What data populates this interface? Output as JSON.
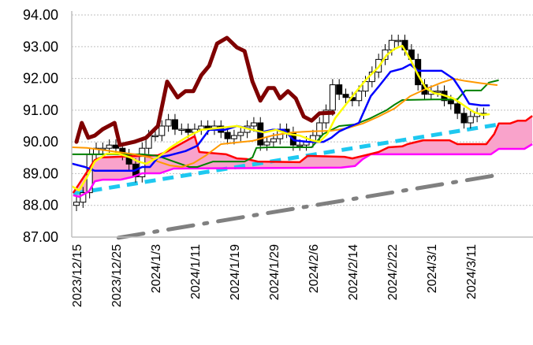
{
  "chart_data": {
    "type": "candlestick",
    "title": "",
    "xlabel": "",
    "ylabel": "",
    "ylim": [
      87,
      94
    ],
    "xlim_index": [
      -0.7,
      69.5
    ],
    "grid": true,
    "y_ticks": [
      "94.00",
      "93.00",
      "92.00",
      "91.00",
      "90.00",
      "89.00",
      "88.00",
      "87.00"
    ],
    "y_tick_values": [
      94,
      93,
      92,
      91,
      90,
      89,
      88,
      87
    ],
    "x_ticks": [
      {
        "label": "2023/12/15",
        "index": 0
      },
      {
        "label": "2023/12/25",
        "index": 6
      },
      {
        "label": "2024/1/3",
        "index": 12
      },
      {
        "label": "2024/1/11",
        "index": 18
      },
      {
        "label": "2024/1/19",
        "index": 24
      },
      {
        "label": "2024/1/29",
        "index": 30
      },
      {
        "label": "2024/2/6",
        "index": 36
      },
      {
        "label": "2024/2/14",
        "index": 42
      },
      {
        "label": "2024/2/22",
        "index": 48
      },
      {
        "label": "2024/3/1",
        "index": 54
      },
      {
        "label": "2024/3/11",
        "index": 60
      }
    ],
    "first_open": 88.0,
    "wick_pad": 0.18,
    "close": [
      88.1,
      88.4,
      89.6,
      89.8,
      89.8,
      89.9,
      89.8,
      89.6,
      89.3,
      88.9,
      89.8,
      90.2,
      90.2,
      90.5,
      90.7,
      90.4,
      90.4,
      90.3,
      90.4,
      90.5,
      90.4,
      90.5,
      90.3,
      90.1,
      90.2,
      90.3,
      90.5,
      90.6,
      89.9,
      90.0,
      90.1,
      90.4,
      90.3,
      89.9,
      89.9,
      90.0,
      90.2,
      90.6,
      91.0,
      91.8,
      91.5,
      91.4,
      91.3,
      91.6,
      91.9,
      92.2,
      92.6,
      92.9,
      93.2,
      93.2,
      92.9,
      92.6,
      91.8,
      91.5,
      91.6,
      91.6,
      91.3,
      91.2,
      90.9,
      90.6,
      90.8,
      90.9,
      90.9
    ],
    "cloud": {
      "fill": "#f9a3cb",
      "span_a": {
        "name": "span-a",
        "color": "#ff0000",
        "points": [
          [
            -0.5,
            88.39
          ],
          [
            2.8,
            89.43
          ],
          [
            3.7,
            89.51
          ],
          [
            12.4,
            89.58
          ],
          [
            13.9,
            89.71
          ],
          [
            18,
            90.18
          ],
          [
            18.7,
            89.68
          ],
          [
            22.8,
            89.61
          ],
          [
            24.4,
            89.48
          ],
          [
            25.9,
            89.46
          ],
          [
            27.6,
            89.38
          ],
          [
            34,
            89.36
          ],
          [
            35.2,
            89.56
          ],
          [
            40.8,
            89.53
          ],
          [
            42,
            89.48
          ],
          [
            44,
            89.58
          ],
          [
            46,
            89.68
          ],
          [
            47.5,
            89.83
          ],
          [
            49.6,
            89.86
          ],
          [
            50.4,
            89.93
          ],
          [
            52.8,
            90.05
          ],
          [
            56.8,
            90.05
          ],
          [
            58,
            89.93
          ],
          [
            62.4,
            89.93
          ],
          [
            63.6,
            90.25
          ],
          [
            64.3,
            90.58
          ],
          [
            66,
            90.58
          ],
          [
            67.2,
            90.67
          ],
          [
            68.4,
            90.67
          ],
          [
            69.4,
            90.82
          ]
        ]
      },
      "span_b": {
        "name": "span-b",
        "color": "#ff00ff",
        "points": [
          [
            -0.5,
            88.32
          ],
          [
            0.4,
            88.27
          ],
          [
            1.9,
            88.44
          ],
          [
            2.8,
            88.76
          ],
          [
            4,
            88.81
          ],
          [
            6.7,
            88.81
          ],
          [
            8.4,
            88.89
          ],
          [
            10,
            89.01
          ],
          [
            12.7,
            89.01
          ],
          [
            14.8,
            89.16
          ],
          [
            40.3,
            89.19
          ],
          [
            42.4,
            89.24
          ],
          [
            43.6,
            89.46
          ],
          [
            44.8,
            89.61
          ],
          [
            63.1,
            89.61
          ],
          [
            64.3,
            89.78
          ],
          [
            68.2,
            89.78
          ],
          [
            69.4,
            89.93
          ]
        ]
      }
    },
    "series": [
      {
        "name": "lagging-span",
        "color": "#7f0000",
        "width": 5,
        "points": [
          [
            0,
            90.0
          ],
          [
            0.8,
            90.6
          ],
          [
            1.8,
            90.13
          ],
          [
            2.8,
            90.2
          ],
          [
            4,
            90.4
          ],
          [
            5.8,
            90.6
          ],
          [
            6.6,
            89.9
          ],
          [
            8.8,
            90.0
          ],
          [
            10.6,
            90.13
          ],
          [
            12.4,
            90.5
          ],
          [
            13.8,
            91.9
          ],
          [
            15.4,
            91.4
          ],
          [
            16.6,
            91.6
          ],
          [
            17.8,
            91.6
          ],
          [
            19,
            92.1
          ],
          [
            20.2,
            92.4
          ],
          [
            21.4,
            93.1
          ],
          [
            22.9,
            93.28
          ],
          [
            24.4,
            92.98
          ],
          [
            25.6,
            92.86
          ],
          [
            26.8,
            91.9
          ],
          [
            28,
            91.3
          ],
          [
            29.2,
            91.7
          ],
          [
            30.1,
            91.7
          ],
          [
            31,
            91.37
          ],
          [
            32.2,
            91.6
          ],
          [
            33.4,
            91.37
          ],
          [
            34.6,
            90.8
          ],
          [
            35.8,
            90.67
          ],
          [
            37,
            90.9
          ],
          [
            39.1,
            90.92
          ]
        ]
      },
      {
        "name": "green-line",
        "color": "#008000",
        "width": 2,
        "points": [
          [
            -0.6,
            89.61
          ],
          [
            10,
            89.61
          ],
          [
            12.4,
            89.56
          ],
          [
            14.8,
            89.38
          ],
          [
            17.2,
            89.21
          ],
          [
            18.4,
            89.21
          ],
          [
            20.8,
            89.38
          ],
          [
            25.6,
            89.38
          ],
          [
            26.8,
            89.51
          ],
          [
            27.4,
            89.81
          ],
          [
            29.2,
            89.83
          ],
          [
            35.8,
            89.83
          ],
          [
            37.6,
            90.25
          ],
          [
            40,
            90.5
          ],
          [
            42.4,
            90.55
          ],
          [
            44.8,
            90.75
          ],
          [
            47.2,
            91.0
          ],
          [
            48.4,
            91.17
          ],
          [
            49.6,
            91.32
          ],
          [
            54.4,
            91.34
          ],
          [
            58,
            91.34
          ],
          [
            59.2,
            91.62
          ],
          [
            61.6,
            91.62
          ],
          [
            62.8,
            91.87
          ],
          [
            64.2,
            91.94
          ]
        ]
      },
      {
        "name": "orange-line",
        "color": "#ff9900",
        "width": 2,
        "points": [
          [
            -0.6,
            89.83
          ],
          [
            1.6,
            89.81
          ],
          [
            5.2,
            89.71
          ],
          [
            8.8,
            89.61
          ],
          [
            11.2,
            89.51
          ],
          [
            12.4,
            89.38
          ],
          [
            14.2,
            89.26
          ],
          [
            16,
            89.21
          ],
          [
            17.8,
            89.33
          ],
          [
            19.6,
            89.56
          ],
          [
            22,
            89.93
          ],
          [
            24.4,
            89.98
          ],
          [
            26.8,
            90.03
          ],
          [
            29.8,
            90.2
          ],
          [
            32.8,
            90.3
          ],
          [
            35.8,
            90.33
          ],
          [
            38.8,
            90.35
          ],
          [
            41.2,
            90.43
          ],
          [
            43.6,
            90.58
          ],
          [
            46,
            90.8
          ],
          [
            48.4,
            91.05
          ],
          [
            50.8,
            91.44
          ],
          [
            53.2,
            91.67
          ],
          [
            55.6,
            91.87
          ],
          [
            57.4,
            91.99
          ],
          [
            59.2,
            91.92
          ],
          [
            61.6,
            91.85
          ],
          [
            64,
            91.79
          ]
        ]
      },
      {
        "name": "blue-line",
        "color": "#0000ff",
        "width": 2.5,
        "points": [
          [
            -0.6,
            89.31
          ],
          [
            1.3,
            89.21
          ],
          [
            2.8,
            89.09
          ],
          [
            8.8,
            89.09
          ],
          [
            10,
            89.21
          ],
          [
            11.2,
            89.21
          ],
          [
            12.4,
            89.51
          ],
          [
            14.2,
            89.58
          ],
          [
            16.6,
            89.71
          ],
          [
            18.4,
            89.88
          ],
          [
            20.2,
            90.38
          ],
          [
            22.6,
            90.38
          ],
          [
            24.4,
            90.5
          ],
          [
            26.2,
            90.43
          ],
          [
            28,
            90.3
          ],
          [
            29.8,
            90.38
          ],
          [
            31.6,
            90.38
          ],
          [
            33.1,
            90.05
          ],
          [
            35.2,
            90.0
          ],
          [
            37.6,
            90.0
          ],
          [
            38.8,
            90.13
          ],
          [
            40,
            90.33
          ],
          [
            41.8,
            90.5
          ],
          [
            43,
            90.6
          ],
          [
            44.8,
            91.44
          ],
          [
            46,
            91.74
          ],
          [
            47.8,
            92.21
          ],
          [
            49.6,
            92.31
          ],
          [
            50.8,
            92.44
          ],
          [
            52,
            92.24
          ],
          [
            53.8,
            92.24
          ],
          [
            55.6,
            92.24
          ],
          [
            57.4,
            91.99
          ],
          [
            58.6,
            91.62
          ],
          [
            59.8,
            91.2
          ],
          [
            61.6,
            91.15
          ],
          [
            62.8,
            91.15
          ]
        ]
      },
      {
        "name": "yellow-line",
        "color": "#ffff00",
        "width": 2.5,
        "points": [
          [
            -0.6,
            88.59
          ],
          [
            0.4,
            88.47
          ],
          [
            1.6,
            88.89
          ],
          [
            2.8,
            89.38
          ],
          [
            4.6,
            89.63
          ],
          [
            6.4,
            89.63
          ],
          [
            8.2,
            89.51
          ],
          [
            9.4,
            89.38
          ],
          [
            10.6,
            89.31
          ],
          [
            12.4,
            89.51
          ],
          [
            14.2,
            89.81
          ],
          [
            16,
            90.05
          ],
          [
            17.2,
            90.2
          ],
          [
            19,
            90.38
          ],
          [
            21.4,
            90.43
          ],
          [
            24.4,
            90.5
          ],
          [
            26.8,
            90.38
          ],
          [
            28.6,
            90.3
          ],
          [
            30.4,
            90.38
          ],
          [
            32.2,
            90.25
          ],
          [
            34,
            90.2
          ],
          [
            35.8,
            90.05
          ],
          [
            37,
            90.0
          ],
          [
            38.2,
            90.25
          ],
          [
            39.4,
            90.75
          ],
          [
            40.8,
            91.12
          ],
          [
            42.4,
            91.54
          ],
          [
            44.2,
            91.99
          ],
          [
            46,
            92.36
          ],
          [
            47.2,
            92.73
          ],
          [
            48.4,
            92.93
          ],
          [
            49.6,
            93.03
          ],
          [
            50.8,
            92.61
          ],
          [
            52,
            92.11
          ],
          [
            53.2,
            91.69
          ],
          [
            54.4,
            91.54
          ],
          [
            55.6,
            91.49
          ],
          [
            57.4,
            91.37
          ],
          [
            59.2,
            91.12
          ],
          [
            60.4,
            90.95
          ],
          [
            61.8,
            90.85
          ],
          [
            62.8,
            90.87
          ]
        ]
      }
    ],
    "trendlines": [
      {
        "name": "cyan-dashed-trendline",
        "color": "#1ec8f0",
        "style": "dashed",
        "points": [
          [
            -0.5,
            88.37
          ],
          [
            64.3,
            90.55
          ]
        ]
      },
      {
        "name": "gray-dash-dot-trendline",
        "color": "#808080",
        "style": "dash-dot",
        "points": [
          [
            6.4,
            86.98
          ],
          [
            64.3,
            88.96
          ]
        ]
      }
    ],
    "candle_colors": {
      "up_fill": "#ffffff",
      "down_fill": "#000000",
      "edge": "#000000"
    },
    "grid_color": "#bfbfbf",
    "axis_color": "#bfbfbf"
  }
}
